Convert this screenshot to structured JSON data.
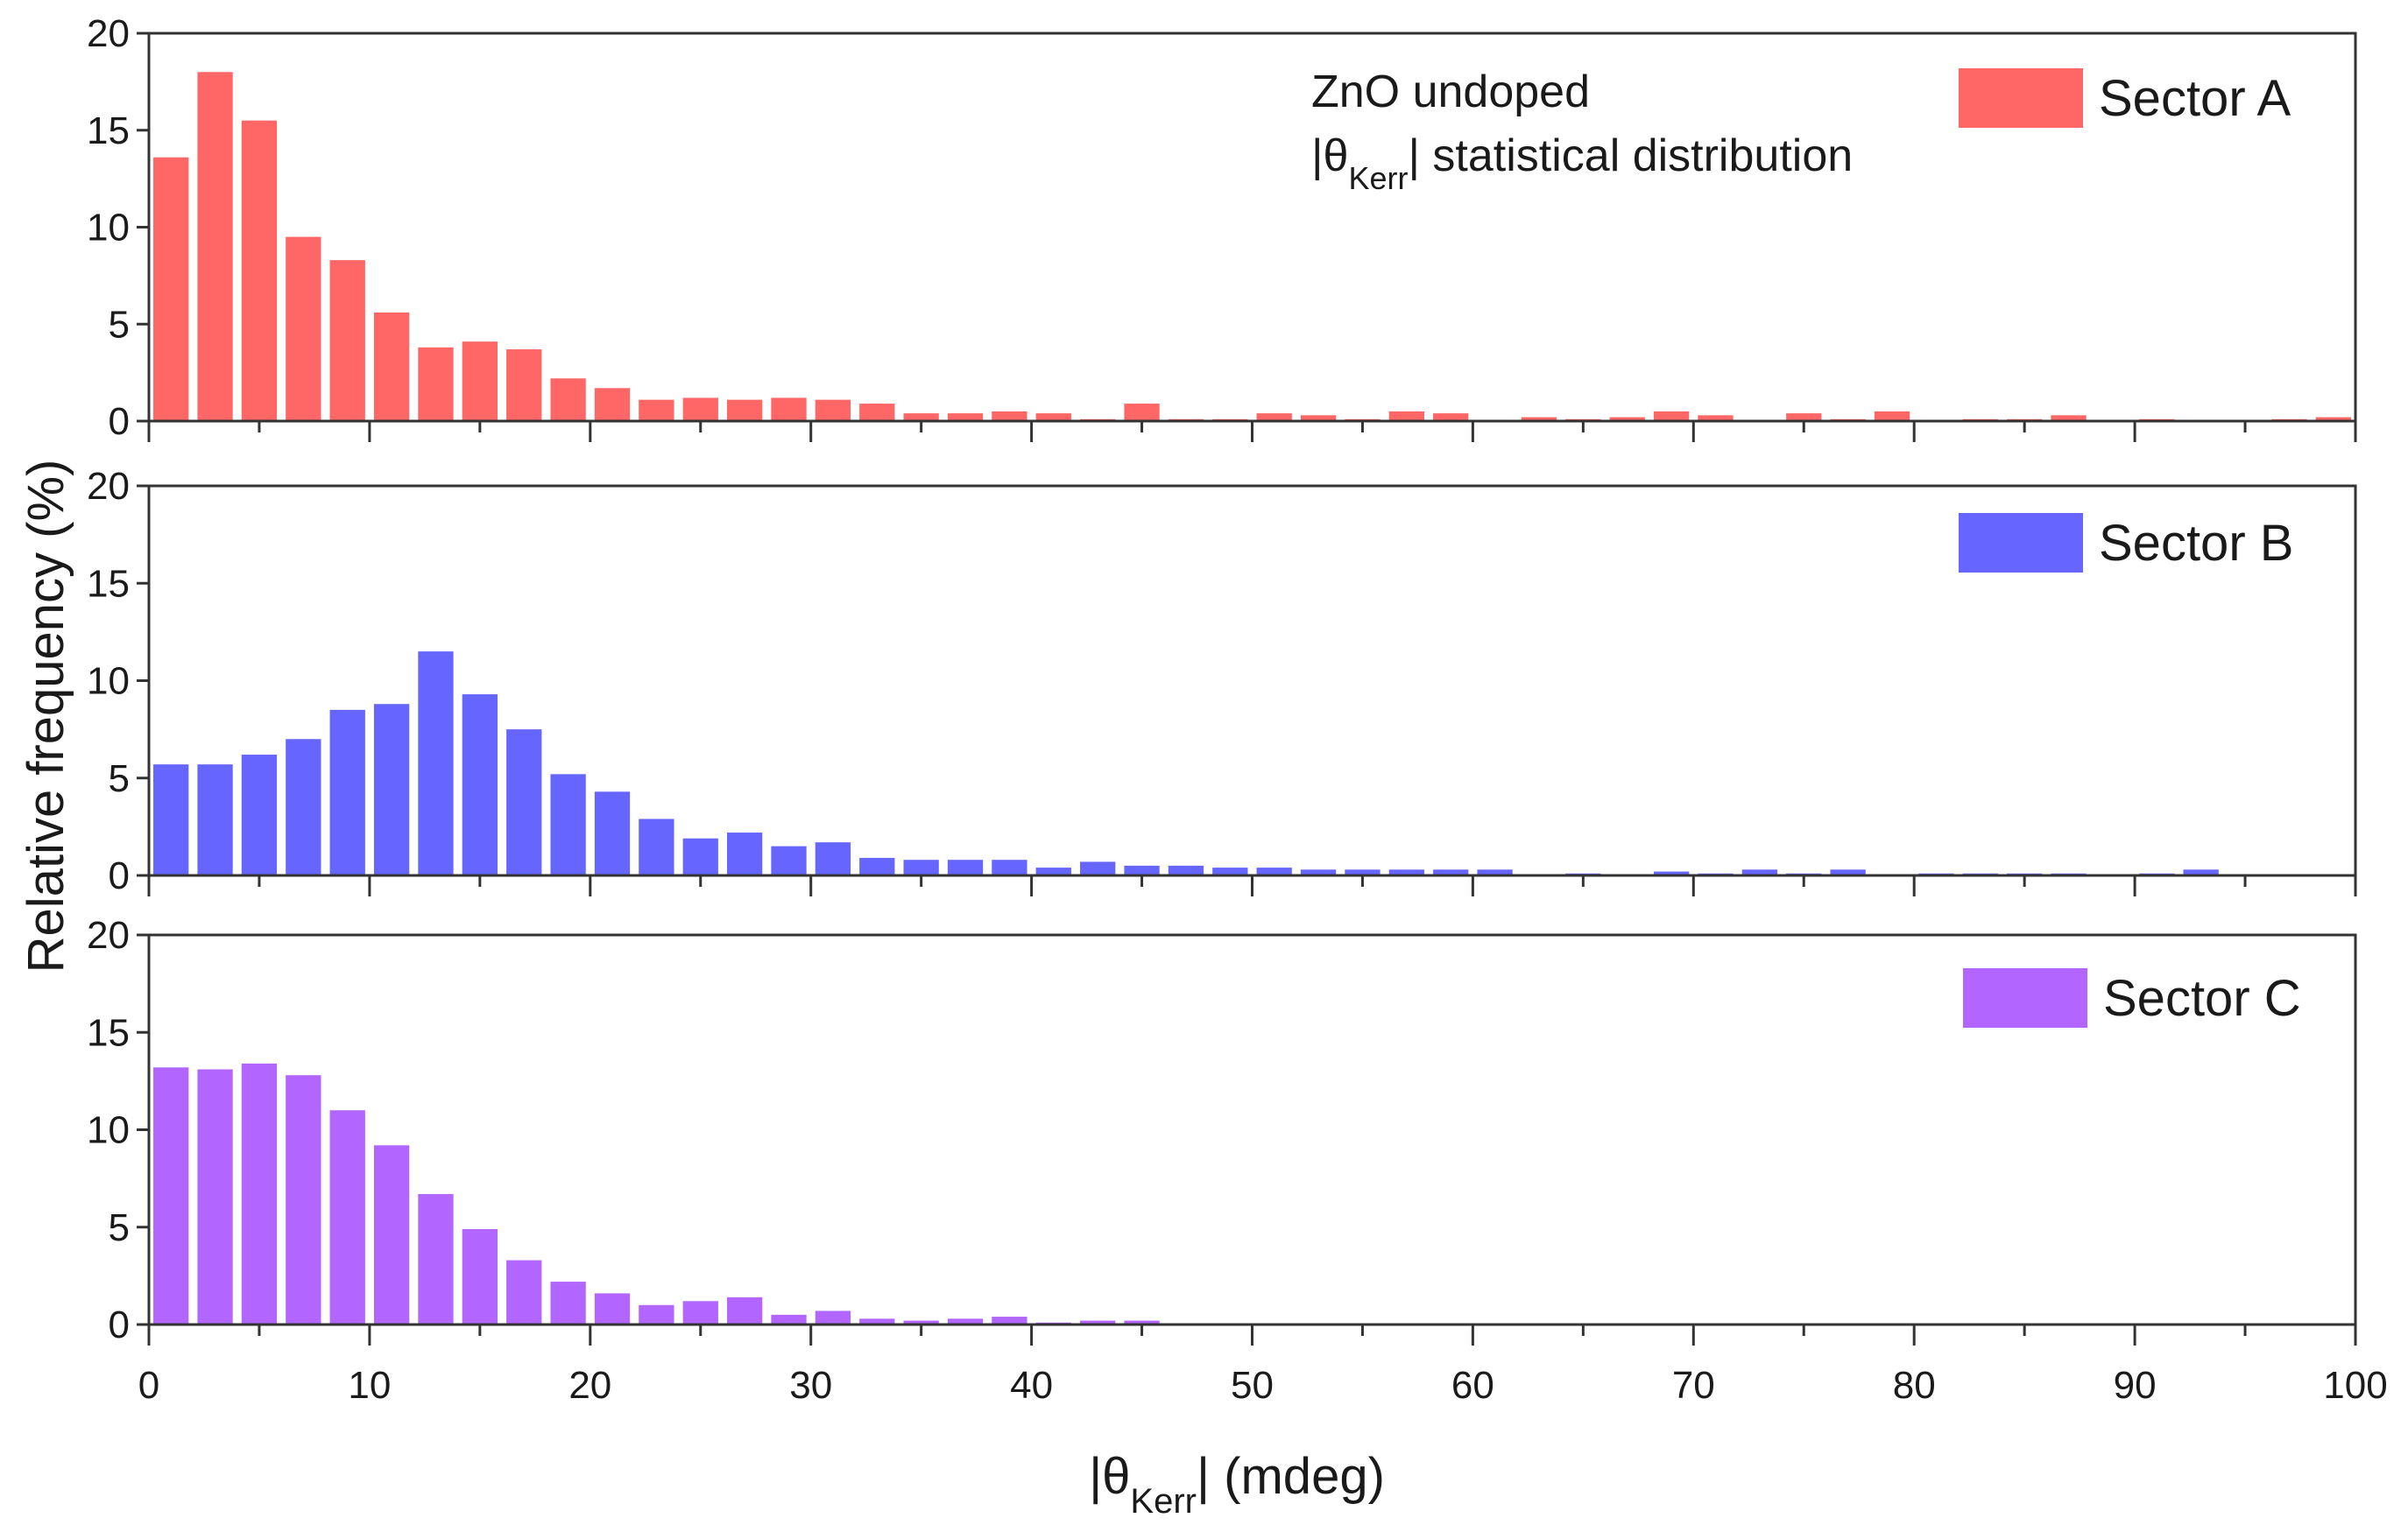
{
  "chart_data": {
    "type": "bar",
    "layout": "three stacked histograms sharing the x axis",
    "xlabel_parts": {
      "pre": "|θ",
      "sub": "Kerr",
      "post": "| (mdeg)"
    },
    "ylabel": "Relative frequency (%)",
    "xlim": [
      0,
      100
    ],
    "ylim": [
      0,
      20
    ],
    "x_ticks": [
      "0",
      "10",
      "20",
      "30",
      "40",
      "50",
      "60",
      "70",
      "80",
      "90",
      "100"
    ],
    "y_ticks": [
      "0",
      "5",
      "10",
      "15",
      "20"
    ],
    "bin_width": 2,
    "bin_centers": [
      1,
      3,
      5,
      7,
      9,
      11,
      13,
      15,
      17,
      19,
      21,
      23,
      25,
      27,
      29,
      31,
      33,
      35,
      37,
      39,
      41,
      43,
      45,
      47,
      49,
      51,
      53,
      55,
      57,
      59,
      61,
      63,
      65,
      67,
      69,
      71,
      73,
      75,
      77,
      79,
      81,
      83,
      85,
      87,
      89,
      91,
      93,
      95,
      97,
      99
    ],
    "annotation": {
      "line1": "ZnO undoped",
      "line2_parts": {
        "pre": "|θ",
        "sub": "Kerr",
        "post": "| statistical distribution"
      }
    },
    "series": [
      {
        "name": "Sector A",
        "color": "#ff6666",
        "values": [
          13.6,
          18.0,
          15.5,
          9.5,
          8.3,
          5.6,
          3.8,
          4.1,
          3.7,
          2.2,
          1.7,
          1.1,
          1.2,
          1.1,
          1.2,
          1.1,
          0.9,
          0.4,
          0.4,
          0.5,
          0.4,
          0.1,
          0.9,
          0.1,
          0.1,
          0.4,
          0.3,
          0.1,
          0.5,
          0.4,
          0,
          0.2,
          0.1,
          0.2,
          0.5,
          0.3,
          0,
          0.4,
          0.1,
          0.5,
          0,
          0.1,
          0.1,
          0.3,
          0,
          0.1,
          0,
          0,
          0.1,
          0.2
        ]
      },
      {
        "name": "Sector B",
        "color": "#6666ff",
        "values": [
          5.7,
          5.7,
          6.2,
          7.0,
          8.5,
          8.8,
          11.5,
          9.3,
          7.5,
          5.2,
          4.3,
          2.9,
          1.9,
          2.2,
          1.5,
          1.7,
          0.9,
          0.8,
          0.8,
          0.8,
          0.4,
          0.7,
          0.5,
          0.5,
          0.4,
          0.4,
          0.3,
          0.3,
          0.3,
          0.3,
          0.3,
          0.05,
          0.1,
          0.05,
          0.2,
          0.1,
          0.3,
          0.1,
          0.3,
          0,
          0.1,
          0.1,
          0.1,
          0.1,
          0.05,
          0.1,
          0.3,
          0.05,
          0.05,
          0
        ]
      },
      {
        "name": "Sector C",
        "color": "#b266ff",
        "values": [
          13.2,
          13.1,
          13.4,
          12.8,
          11.0,
          9.2,
          6.7,
          4.9,
          3.3,
          2.2,
          1.6,
          1.0,
          1.2,
          1.4,
          0.5,
          0.7,
          0.3,
          0.2,
          0.3,
          0.4,
          0.1,
          0.2,
          0.2,
          0,
          0.05,
          0.05,
          0,
          0,
          0.05,
          0,
          0,
          0.05,
          0,
          0.05,
          0,
          0.05,
          0,
          0,
          0.05,
          0,
          0,
          0,
          0,
          0,
          0,
          0.05,
          0.05,
          0,
          0,
          0
        ]
      }
    ]
  }
}
